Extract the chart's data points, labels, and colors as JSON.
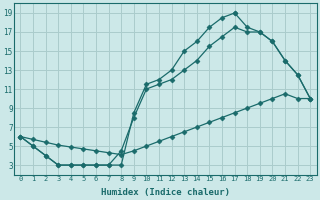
{
  "xlabel": "Humidex (Indice chaleur)",
  "bg_color": "#cce8e8",
  "grid_color": "#aacccc",
  "line_color": "#1a6b6b",
  "xlim": [
    -0.5,
    23.5
  ],
  "ylim": [
    2.0,
    20.0
  ],
  "xticks": [
    0,
    1,
    2,
    3,
    4,
    5,
    6,
    7,
    8,
    9,
    10,
    11,
    12,
    13,
    14,
    15,
    16,
    17,
    18,
    19,
    20,
    21,
    22,
    23
  ],
  "yticks": [
    3,
    5,
    7,
    9,
    11,
    13,
    15,
    17,
    19
  ],
  "line1_x": [
    0,
    1,
    2,
    3,
    4,
    5,
    6,
    7,
    8,
    9,
    10,
    11,
    12,
    13,
    14,
    15,
    16,
    17
  ],
  "line1_y": [
    6,
    5,
    4,
    3,
    3,
    3,
    3,
    3,
    3,
    8.5,
    11.5,
    12,
    13,
    15,
    16,
    17.5,
    18.5,
    19
  ],
  "line2_x": [
    0,
    1,
    2,
    3,
    4,
    5,
    6,
    7,
    8,
    9,
    10,
    11,
    12,
    13,
    14,
    15,
    16,
    17,
    18,
    19,
    20,
    21,
    22,
    23
  ],
  "line2_y": [
    6,
    5.7,
    5.4,
    5.1,
    4.9,
    4.7,
    4.5,
    4.3,
    4.1,
    4.5,
    5,
    5.5,
    6,
    6.5,
    7,
    7.5,
    8,
    8.5,
    9,
    9.5,
    10,
    10.5,
    10,
    10
  ],
  "line3_x": [
    0,
    1,
    2,
    3,
    4,
    5,
    6,
    7,
    8,
    9,
    10,
    11,
    12,
    13,
    14,
    15,
    16,
    17,
    18,
    19,
    20,
    21,
    22,
    23
  ],
  "line3_y": [
    6,
    5,
    4,
    3,
    3,
    3,
    3,
    3,
    4.5,
    8,
    11,
    11.5,
    12,
    13,
    14,
    15.5,
    16.5,
    17.5,
    17,
    17,
    16,
    14,
    12.5,
    10
  ],
  "line4_x": [
    17,
    18,
    19,
    20,
    21,
    22,
    23
  ],
  "line4_y": [
    19,
    17.5,
    17,
    16,
    14,
    12.5,
    10
  ]
}
